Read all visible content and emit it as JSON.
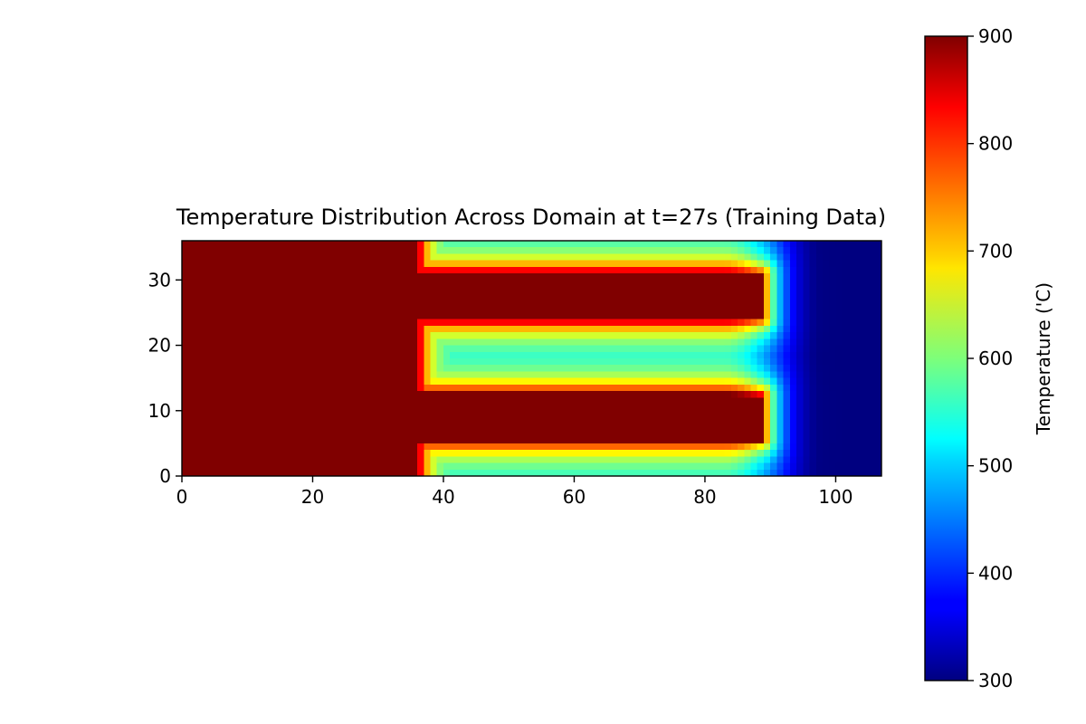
{
  "chart_data": {
    "type": "heatmap",
    "title": "Temperature Distribution Across Domain at t=27s (Training Data)",
    "xlabel": "",
    "ylabel": "",
    "x_range": [
      0,
      107
    ],
    "y_range": [
      0,
      36
    ],
    "x_ticks": [
      0,
      20,
      40,
      60,
      80,
      100
    ],
    "y_ticks": [
      0,
      10,
      20,
      30
    ],
    "grid": false,
    "colormap": "jet",
    "colorbar": {
      "label": "Temperature ('C)",
      "range": [
        300,
        900
      ],
      "ticks": [
        300,
        400,
        500,
        600,
        700,
        800,
        900
      ]
    },
    "field": {
      "hot_block": {
        "x": [
          0,
          36
        ],
        "y": [
          0,
          36
        ],
        "value": 900
      },
      "hot_fingers": [
        {
          "x": [
            36,
            89
          ],
          "y": [
            5.5,
            12.5
          ],
          "value": 900
        },
        {
          "x": [
            36,
            89
          ],
          "y": [
            24,
            31
          ],
          "value": 900
        }
      ],
      "channel_value": 530,
      "far_field_value": 300,
      "front_x": [
        83,
        98
      ]
    }
  }
}
